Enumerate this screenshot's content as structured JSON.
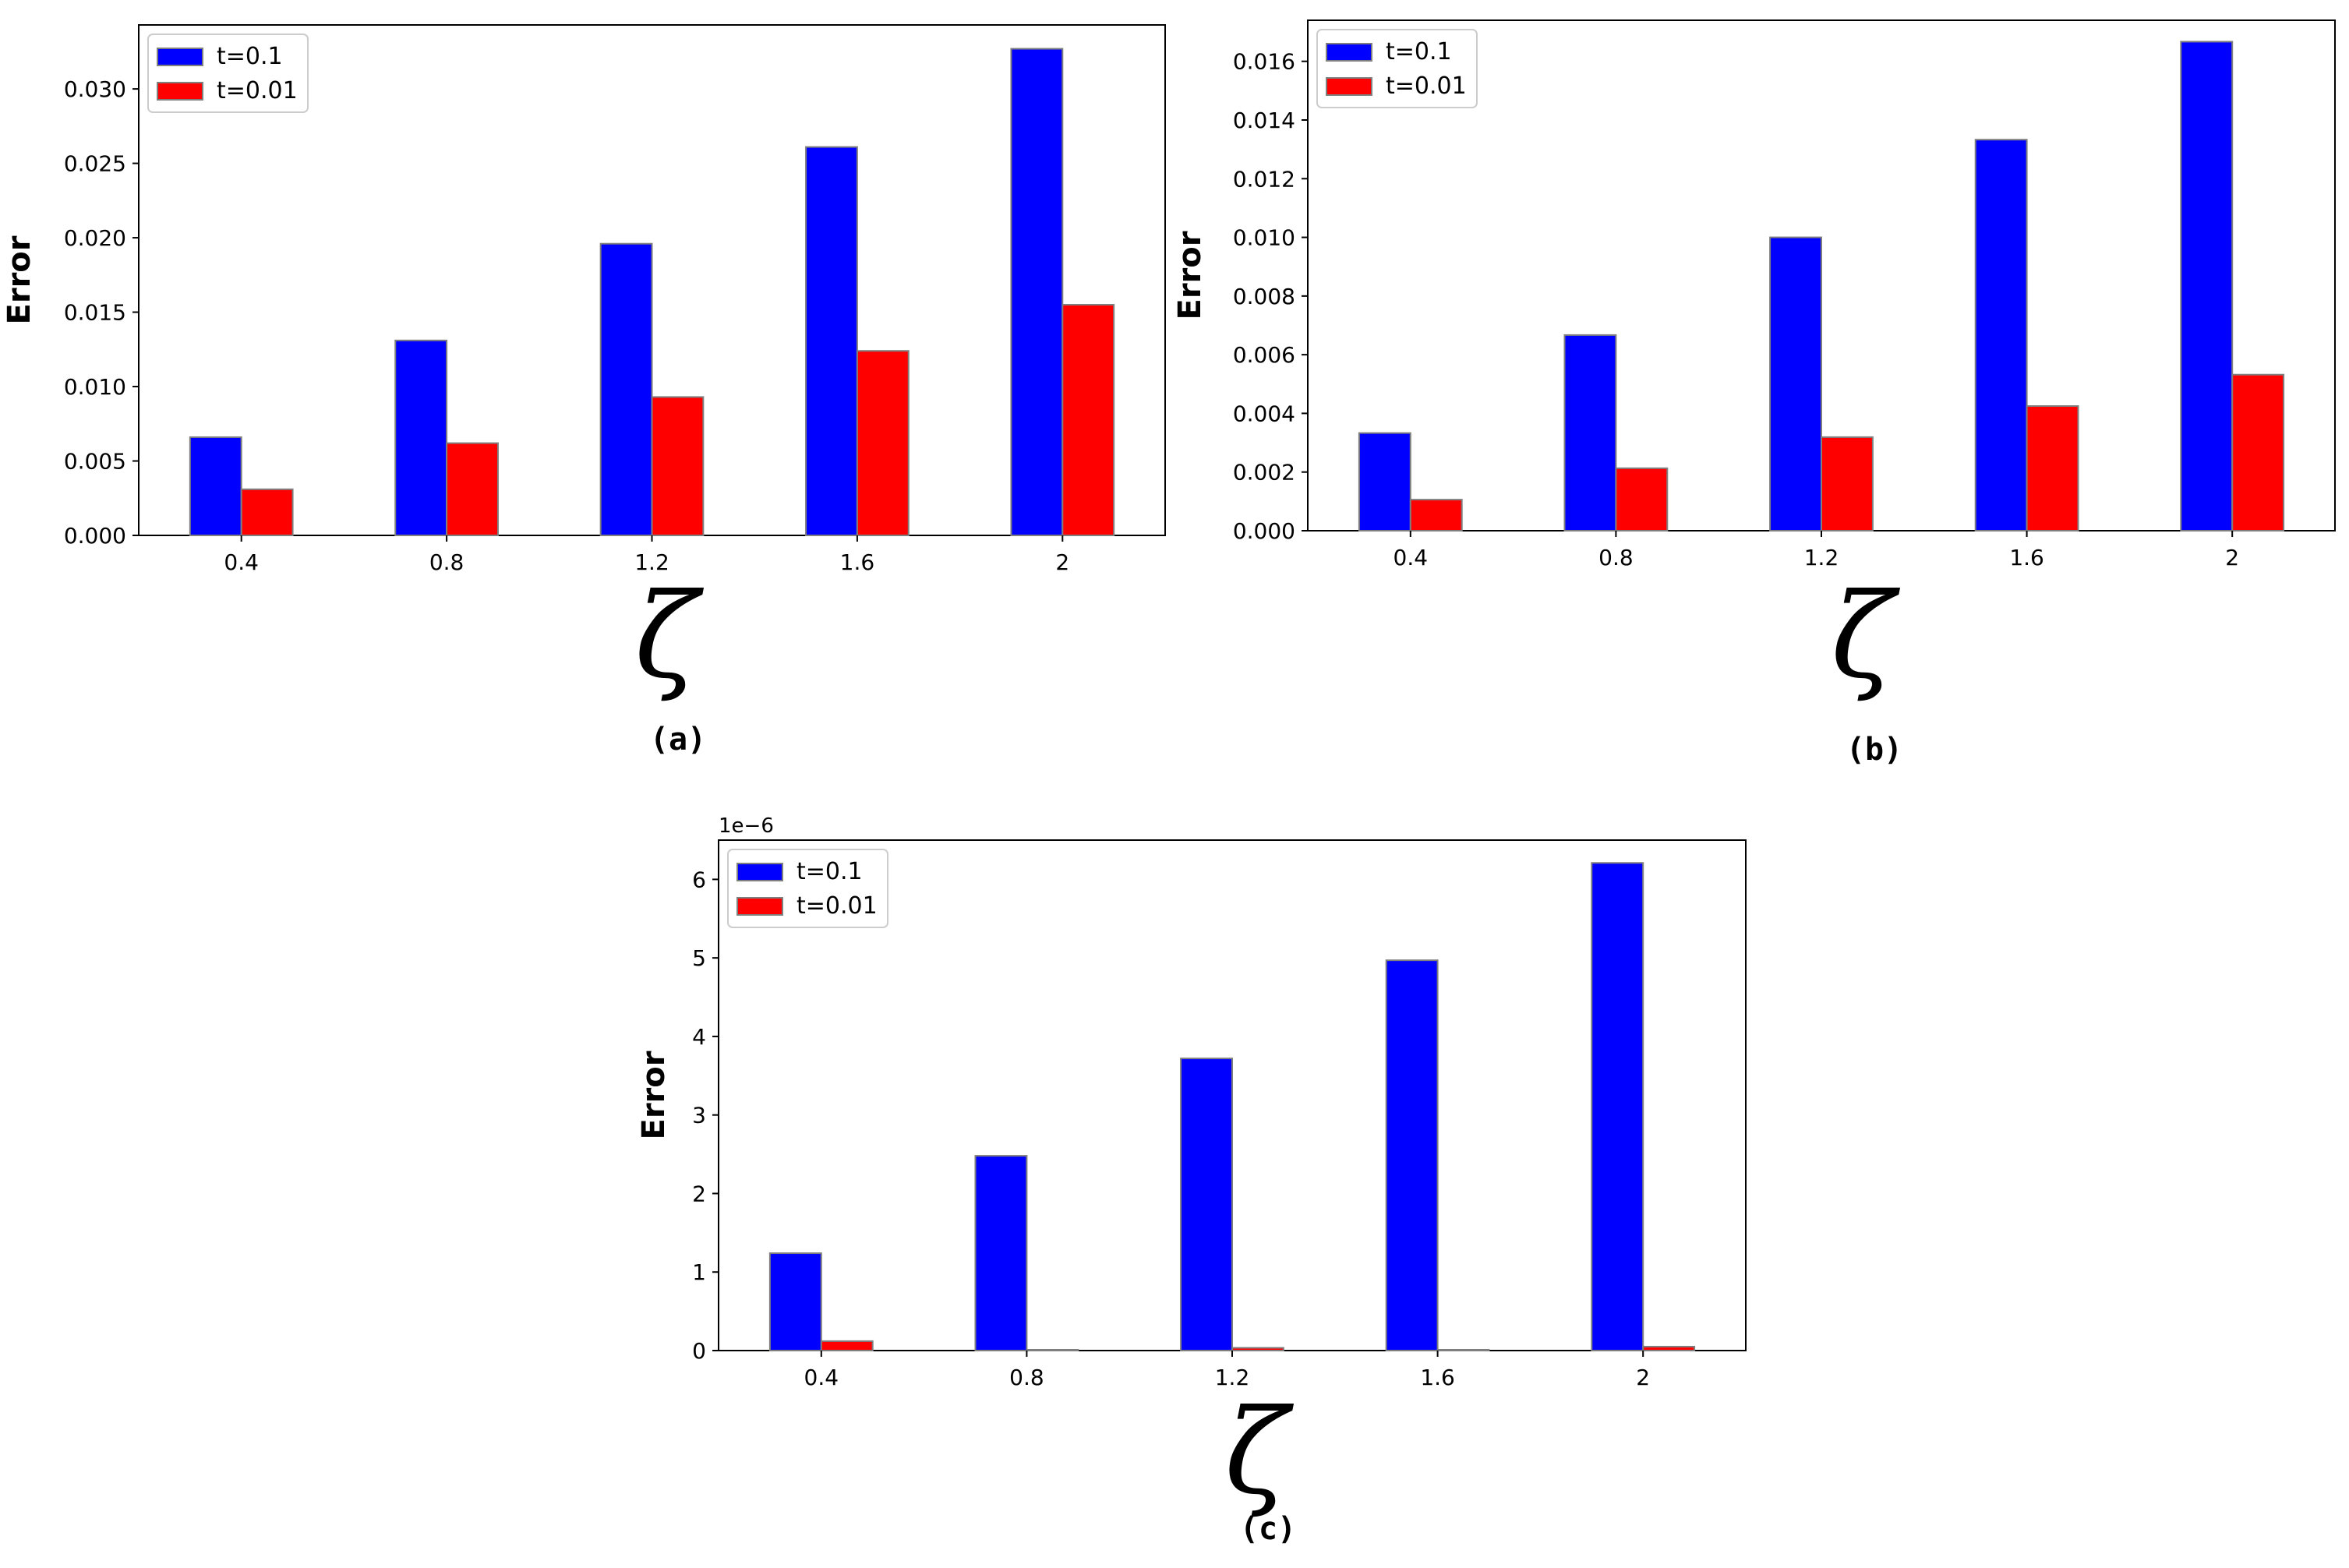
{
  "chart_data": [
    {
      "type": "bar",
      "panel_label": "(a)",
      "categories": [
        "0.4",
        "0.8",
        "1.2",
        "1.6",
        "2"
      ],
      "series": [
        {
          "name": "t=0.1",
          "color": "#0000ff",
          "values": [
            0.0066,
            0.0131,
            0.0196,
            0.0261,
            0.0327
          ]
        },
        {
          "name": "t=0.01",
          "color": "#ff0000",
          "values": [
            0.0031,
            0.0062,
            0.0093,
            0.0124,
            0.0155
          ]
        }
      ],
      "xlabel": "ζ",
      "ylabel": "Error",
      "ylim": [
        0,
        0.0343
      ],
      "yticks": [
        0,
        0.005,
        0.01,
        0.015,
        0.02,
        0.025,
        0.03
      ],
      "ytick_labels": [
        "0.000",
        "0.005",
        "0.010",
        "0.015",
        "0.020",
        "0.025",
        "0.030"
      ],
      "offset_text": "",
      "legend_loc": "upper left",
      "grid": false
    },
    {
      "type": "bar",
      "panel_label": "(b)",
      "categories": [
        "0.4",
        "0.8",
        "1.2",
        "1.6",
        "2"
      ],
      "series": [
        {
          "name": "t=0.1",
          "color": "#0000ff",
          "values": [
            0.00333,
            0.00667,
            0.01,
            0.01333,
            0.01667
          ]
        },
        {
          "name": "t=0.01",
          "color": "#ff0000",
          "values": [
            0.00106,
            0.00213,
            0.00319,
            0.00425,
            0.00532
          ]
        }
      ],
      "xlabel": "ζ",
      "ylabel": "Error",
      "ylim": [
        0,
        0.0174
      ],
      "yticks": [
        0,
        0.002,
        0.004,
        0.006,
        0.008,
        0.01,
        0.012,
        0.014,
        0.016
      ],
      "ytick_labels": [
        "0.000",
        "0.002",
        "0.004",
        "0.006",
        "0.008",
        "0.010",
        "0.012",
        "0.014",
        "0.016"
      ],
      "offset_text": "",
      "legend_loc": "upper left",
      "grid": false
    },
    {
      "type": "bar",
      "panel_label": "(c)",
      "categories": [
        "0.4",
        "0.8",
        "1.2",
        "1.6",
        "2"
      ],
      "series": [
        {
          "name": "t=0.1",
          "color": "#0000ff",
          "values": [
            1.24,
            2.48,
            3.72,
            4.97,
            6.21
          ]
        },
        {
          "name": "t=0.01",
          "color": "#ff0000",
          "values": [
            0.12,
            0.01,
            0.035,
            0.01,
            0.05
          ]
        }
      ],
      "xlabel": "ζ",
      "ylabel": "Error",
      "ylim": [
        0,
        6.5
      ],
      "yticks": [
        0,
        1,
        2,
        3,
        4,
        5,
        6
      ],
      "ytick_labels": [
        "0",
        "1",
        "2",
        "3",
        "4",
        "5",
        "6"
      ],
      "offset_text": "1e−6",
      "legend_loc": "upper left",
      "grid": false
    }
  ]
}
